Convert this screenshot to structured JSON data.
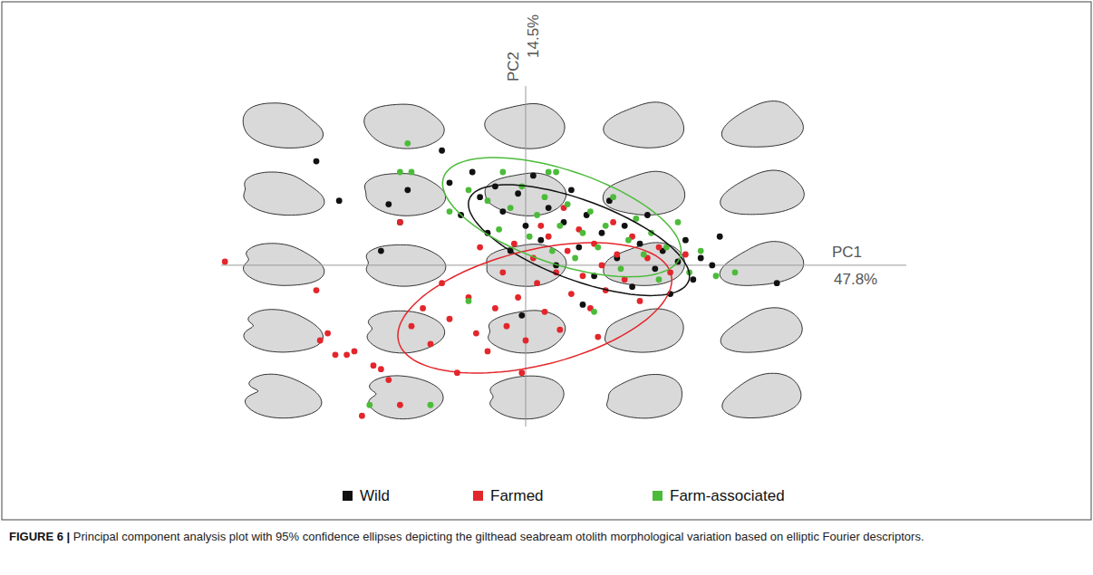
{
  "chart_data": {
    "type": "scatter",
    "x_label": "PC1 47.8%",
    "y_label": "PC2 14.5%",
    "figure_label": "FIGURE 6 |",
    "caption": "Principal component analysis plot with 95% confidence ellipses depicting the gilthead seabream otolith morphological variation based on elliptic Fourier descriptors.",
    "xlim": [
      -0.8,
      1.0
    ],
    "ylim": [
      -0.45,
      0.5
    ],
    "tick_labels": false,
    "grid": false,
    "legend": "bottom",
    "series": [
      {
        "name": "Wild",
        "color": "#111111",
        "marker": "circle",
        "x": [
          -0.55,
          -0.49,
          -0.36,
          -0.33,
          -0.31,
          -0.22,
          -0.2,
          -0.17,
          -0.14,
          -0.12,
          -0.1,
          -0.08,
          -0.06,
          -0.04,
          -0.02,
          0.0,
          0.02,
          0.04,
          0.06,
          0.08,
          0.1,
          0.12,
          0.14,
          0.16,
          0.18,
          0.2,
          0.22,
          0.24,
          0.26,
          0.28,
          0.3,
          0.32,
          0.34,
          0.36,
          0.38,
          0.4,
          0.42,
          0.44,
          0.46,
          0.49,
          0.51,
          0.66,
          -0.01,
          0.15,
          -0.38
        ],
        "y": [
          0.29,
          0.18,
          0.17,
          0.12,
          0.21,
          0.32,
          0.23,
          0.14,
          0.26,
          0.19,
          0.09,
          0.22,
          0.15,
          0.04,
          0.2,
          0.11,
          0.25,
          0.07,
          0.16,
          0.0,
          0.12,
          0.21,
          0.05,
          0.14,
          -0.03,
          0.09,
          0.18,
          0.02,
          0.11,
          -0.06,
          0.06,
          0.14,
          -0.01,
          0.04,
          -0.08,
          0.01,
          0.07,
          -0.04,
          0.02,
          0.0,
          0.08,
          -0.05,
          -0.14,
          -0.11,
          0.04
        ],
        "ellipse": {
          "cx": 0.14,
          "cy": 0.07,
          "a": 0.31,
          "b": 0.11,
          "angle": -22
        }
      },
      {
        "name": "Farmed",
        "color": "#e3262b",
        "marker": "circle",
        "x": [
          -0.79,
          -0.54,
          -0.52,
          -0.5,
          -0.47,
          -0.45,
          -0.43,
          -0.4,
          -0.38,
          -0.36,
          -0.33,
          -0.3,
          -0.27,
          -0.25,
          -0.22,
          -0.2,
          -0.18,
          -0.15,
          -0.13,
          -0.12,
          -0.1,
          -0.08,
          -0.06,
          -0.05,
          -0.03,
          -0.02,
          0.0,
          0.02,
          0.03,
          0.05,
          0.06,
          0.08,
          0.09,
          0.11,
          0.12,
          0.14,
          0.15,
          0.17,
          0.18,
          0.2,
          0.21,
          0.23,
          0.24,
          0.26,
          0.28,
          0.3,
          0.32,
          0.35,
          0.38,
          0.42,
          -0.33,
          -0.55,
          0.1,
          0.04,
          -0.01,
          0.19
        ],
        "y": [
          0.01,
          -0.21,
          -0.19,
          -0.25,
          -0.25,
          -0.24,
          -0.42,
          -0.28,
          -0.29,
          -0.32,
          -0.39,
          -0.17,
          -0.12,
          -0.22,
          -0.05,
          -0.15,
          -0.3,
          -0.09,
          -0.19,
          0.05,
          -0.24,
          -0.12,
          -0.02,
          -0.17,
          0.06,
          -0.09,
          -0.21,
          0.02,
          -0.05,
          -0.13,
          0.08,
          -0.02,
          -0.18,
          0.04,
          -0.08,
          0.1,
          -0.03,
          -0.12,
          0.06,
          0.0,
          -0.07,
          0.12,
          0.03,
          -0.04,
          0.08,
          -0.1,
          0.02,
          0.05,
          -0.02,
          0.03,
          0.12,
          -0.07,
          0.16,
          0.11,
          -0.3,
          -0.2
        ],
        "ellipse": {
          "cx": 0.024,
          "cy": -0.119,
          "a": 0.37,
          "b": 0.16,
          "angle": 15
        }
      },
      {
        "name": "Farm-associated",
        "color": "#4cbb3a",
        "marker": "circle",
        "x": [
          -0.31,
          -0.33,
          -0.3,
          0.06,
          0.08,
          -0.06,
          -0.2,
          -0.15,
          -0.1,
          -0.07,
          -0.04,
          -0.01,
          0.01,
          0.03,
          0.05,
          0.07,
          0.09,
          0.11,
          0.13,
          0.15,
          0.17,
          0.19,
          0.21,
          0.23,
          0.25,
          0.27,
          0.29,
          0.31,
          0.33,
          0.35,
          0.37,
          0.4,
          0.43,
          0.46,
          0.5,
          0.55,
          -0.25,
          -0.41,
          -0.15,
          0.18
        ],
        "y": [
          0.34,
          0.26,
          0.26,
          0.26,
          0.26,
          0.26,
          0.15,
          0.21,
          0.18,
          0.1,
          0.16,
          0.22,
          0.08,
          0.14,
          0.19,
          0.04,
          0.11,
          0.17,
          0.02,
          0.09,
          0.15,
          0.05,
          0.11,
          0.19,
          -0.01,
          0.07,
          0.13,
          0.03,
          0.09,
          -0.04,
          0.05,
          0.12,
          -0.02,
          0.04,
          -0.03,
          -0.02,
          -0.39,
          -0.39,
          -0.1,
          -0.13
        ],
        "ellipse": {
          "cx": 0.095,
          "cy": 0.134,
          "a": 0.33,
          "b": 0.13,
          "angle": -20
        }
      }
    ]
  }
}
